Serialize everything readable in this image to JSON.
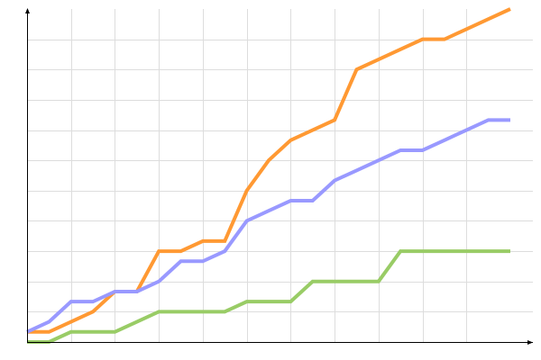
{
  "chart_data": {
    "type": "line",
    "title": "",
    "xlabel": "",
    "ylabel": "",
    "x": [
      0,
      1,
      2,
      3,
      4,
      5,
      6,
      7,
      8,
      9,
      10,
      11,
      12,
      13,
      14,
      15,
      16,
      17,
      18,
      19,
      20,
      21,
      22
    ],
    "xlim": [
      0,
      22
    ],
    "ylim": [
      0,
      33
    ],
    "x_grid_step": 2,
    "y_grid_step": 3,
    "grid": true,
    "tick_labels_shown": false,
    "legend": "none",
    "series": [
      {
        "color": "#ff9933",
        "values": [
          1,
          1,
          2,
          3,
          5,
          5,
          9,
          9,
          10,
          10,
          15,
          18,
          20,
          21,
          22,
          27,
          28,
          29,
          30,
          30,
          31,
          32,
          33
        ]
      },
      {
        "color": "#9999ff",
        "values": [
          1,
          2,
          4,
          4,
          5,
          5,
          6,
          8,
          8,
          9,
          12,
          13,
          14,
          14,
          16,
          17,
          18,
          19,
          19,
          20,
          21,
          22,
          22
        ]
      },
      {
        "color": "#99cc66",
        "values": [
          0,
          0,
          1,
          1,
          1,
          2,
          3,
          3,
          3,
          3,
          4,
          4,
          4,
          6,
          6,
          6,
          6,
          9,
          9,
          9,
          9,
          9,
          9
        ]
      }
    ],
    "grid_color": "#dddddd",
    "axis_color": "#000000"
  }
}
